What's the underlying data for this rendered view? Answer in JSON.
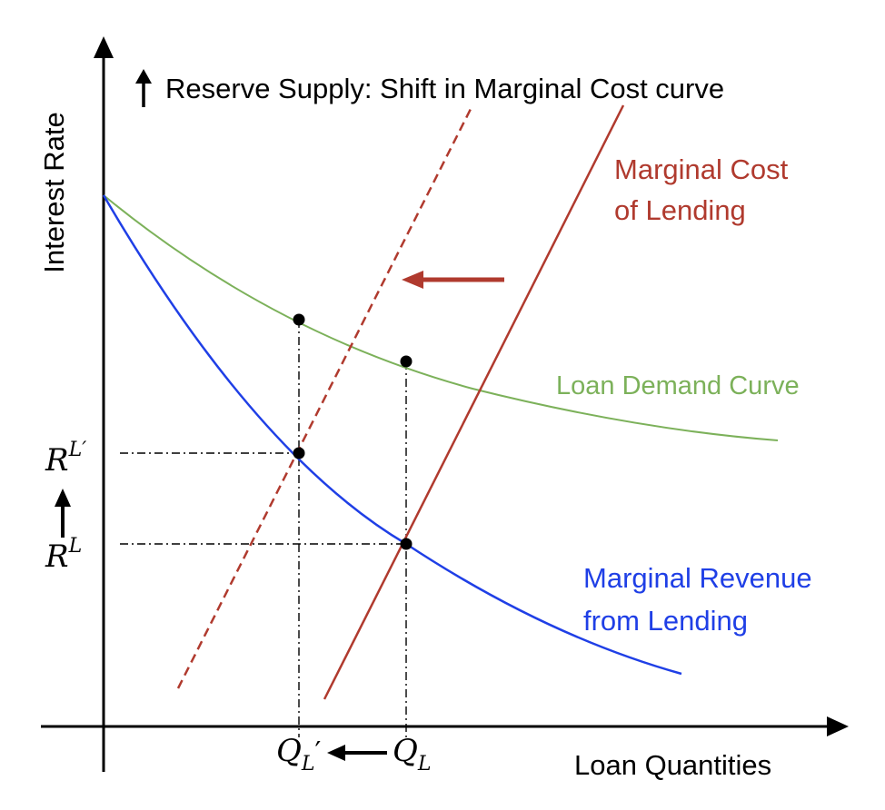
{
  "title": "Reserve Supply: Shift in Marginal Cost curve",
  "axes": {
    "y_label": "Interest Rate",
    "x_label": "Loan Quantities"
  },
  "curves": {
    "marginal_cost": {
      "line1": "Marginal Cost",
      "line2": "of Lending",
      "color": "#b03a2e"
    },
    "loan_demand": {
      "label": "Loan Demand Curve",
      "color": "#7cb15a"
    },
    "marginal_revenue": {
      "line1": "Marginal Revenue",
      "line2": "from Lending",
      "color": "#1f3fe6"
    }
  },
  "y_ticks": {
    "rate_new": {
      "base": "R",
      "sup": "L′"
    },
    "rate_old": {
      "base": "R",
      "sup": "L"
    }
  },
  "x_ticks": {
    "qty_new": {
      "base": "Q",
      "sub": "L",
      "prime": "′"
    },
    "qty_old": {
      "base": "Q",
      "sub": "L"
    }
  },
  "icons": {
    "title_arrow": "arrow-up-icon",
    "rate_arrow": "arrow-up-icon",
    "qty_arrow": "arrow-left-icon",
    "shift_arrow": "arrow-left-icon"
  }
}
